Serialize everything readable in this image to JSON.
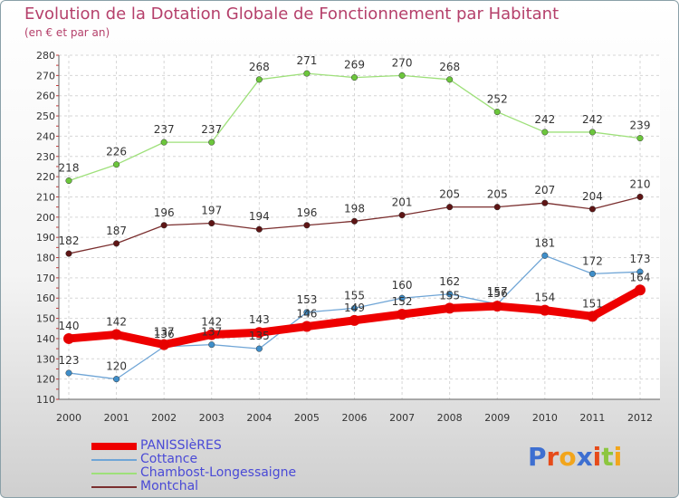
{
  "chart_data": {
    "type": "line",
    "title": "Evolution de la Dotation Globale de Fonctionnement par Habitant",
    "subtitle": "(en € et par an)",
    "x": [
      "2000",
      "2001",
      "2002",
      "2003",
      "2004",
      "2005",
      "2006",
      "2007",
      "2008",
      "2009",
      "2010",
      "2011",
      "2012"
    ],
    "ylim": [
      110,
      280
    ],
    "yticks": [
      110,
      120,
      130,
      140,
      150,
      160,
      170,
      180,
      190,
      200,
      210,
      220,
      230,
      240,
      250,
      260,
      270,
      280
    ],
    "grid": true,
    "legend_position": "bottom-left",
    "series": [
      {
        "name": "PANISSIèRES",
        "color": "#ee0000",
        "marker_color": "#e60000",
        "weight": "thick",
        "values": [
          140,
          142,
          137,
          142,
          143,
          146,
          149,
          152,
          155,
          156,
          154,
          151,
          164
        ],
        "labels": [
          "140",
          "142",
          "137",
          "142",
          "143",
          "146",
          "149",
          "152",
          "155",
          "156",
          "154",
          "151",
          "164"
        ]
      },
      {
        "name": "Cottance",
        "color": "#6fa5d6",
        "marker_color": "#3f8ec9",
        "weight": "thin",
        "values": [
          123,
          120,
          136,
          137,
          135,
          153,
          155,
          160,
          162,
          157,
          181,
          172,
          173
        ],
        "labels": [
          "123",
          "120",
          "136",
          "137",
          "135",
          "153",
          "155",
          "160",
          "162",
          "157",
          "181",
          "172",
          "173"
        ]
      },
      {
        "name": "Chambost-Longessaigne",
        "color": "#9ee07a",
        "marker_color": "#6cc63c",
        "weight": "thin",
        "values": [
          218,
          226,
          237,
          237,
          268,
          271,
          269,
          270,
          268,
          252,
          242,
          242,
          239
        ],
        "labels": [
          "218",
          "226",
          "237",
          "237",
          "268",
          "271",
          "269",
          "270",
          "268",
          "252",
          "242",
          "242",
          "239"
        ]
      },
      {
        "name": "Montchal",
        "color": "#7a2e2e",
        "marker_color": "#5e1515",
        "weight": "thin",
        "values": [
          182,
          187,
          196,
          197,
          194,
          196,
          198,
          201,
          205,
          205,
          207,
          204,
          210
        ],
        "labels": [
          "182",
          "187",
          "196",
          "197",
          "194",
          "196",
          "198",
          "201",
          "205",
          "205",
          "207",
          "204",
          "210"
        ]
      }
    ]
  },
  "legend": {
    "items": [
      "PANISSIèRES",
      "Cottance",
      "Chambost-Longessaigne",
      "Montchal"
    ]
  },
  "logo": {
    "letters": [
      "P",
      "r",
      "o",
      "x",
      "i",
      "t",
      "i"
    ],
    "colors": [
      "#3d6fd1",
      "#e64b1a",
      "#f2a51c",
      "#3d6fd1",
      "#e64b1a",
      "#8cc63f",
      "#f2a51c"
    ]
  }
}
